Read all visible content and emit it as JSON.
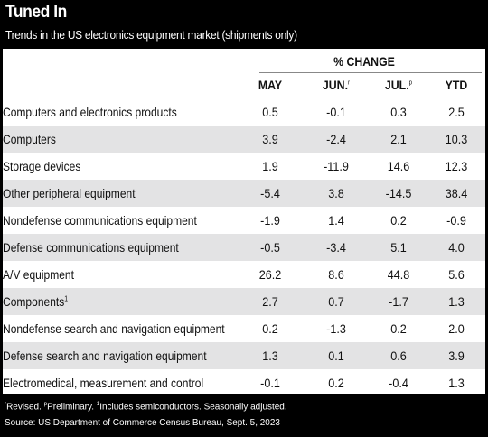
{
  "title": "Tuned In",
  "subtitle": "Trends in the US electronics equipment market (shipments only)",
  "group_header": "% CHANGE",
  "columns": [
    {
      "label": "MAY",
      "mark": ""
    },
    {
      "label": "JUN.",
      "mark": "r"
    },
    {
      "label": "JUL.",
      "mark": "p"
    },
    {
      "label": "YTD",
      "mark": ""
    }
  ],
  "rows": [
    {
      "label": " Computers and electronics products",
      "mark": "",
      "values": [
        "0.5",
        "-0.1",
        "0.3",
        "2.5"
      ]
    },
    {
      "label": "Computers",
      "mark": "",
      "values": [
        "3.9",
        "-2.4",
        "2.1",
        "10.3"
      ]
    },
    {
      "label": "Storage devices",
      "mark": "",
      "values": [
        "1.9",
        "-11.9",
        "14.6",
        "12.3"
      ]
    },
    {
      "label": "Other peripheral equipment",
      "mark": "",
      "values": [
        "-5.4",
        "3.8",
        "-14.5",
        "38.4"
      ]
    },
    {
      "label": "Nondefense communications equipment",
      "mark": "",
      "values": [
        "-1.9",
        "1.4",
        "0.2",
        "-0.9"
      ]
    },
    {
      "label": "Defense communications equipment",
      "mark": "",
      "values": [
        "-0.5",
        "-3.4",
        "5.1",
        "4.0"
      ]
    },
    {
      "label": "A/V equipment",
      "mark": "",
      "values": [
        "26.2",
        "8.6",
        "44.8",
        "5.6"
      ]
    },
    {
      "label": "Components",
      "mark": "1",
      "values": [
        "2.7",
        "0.7",
        "-1.7",
        "1.3"
      ]
    },
    {
      "label": "Nondefense search and navigation equipment",
      "mark": "",
      "values": [
        "0.2",
        "-1.3",
        "0.2",
        "2.0"
      ]
    },
    {
      "label": "Defense search and navigation equipment",
      "mark": "",
      "values": [
        "1.3",
        "0.1",
        "0.6",
        "3.9"
      ]
    },
    {
      "label": "Electromedical, measurement and control",
      "mark": "",
      "values": [
        "-0.1",
        "0.2",
        "-0.4",
        "1.3"
      ]
    }
  ],
  "notes": {
    "r_mark": "r",
    "revised": "Revised. ",
    "p_mark": "p",
    "preliminary": "Preliminary. ",
    "one_mark": "1",
    "includes": "Includes semiconductors. Seasonally adjusted.",
    "source": "Source: US Department of Commerce Census Bureau, Sept. 5, 2023"
  },
  "colors": {
    "background": "#000000",
    "panel": "#ffffff",
    "row_shade": "#e3e3e4",
    "text": "#111111"
  }
}
